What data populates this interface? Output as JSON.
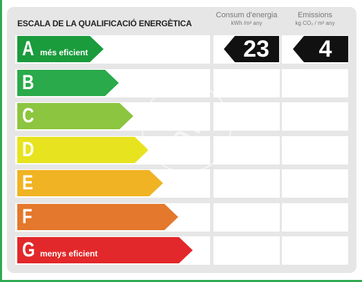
{
  "title": "ESCALA DE LA QUALIFICACIÓ ENERGÈTICA",
  "columns": {
    "energy": {
      "label": "Consum d'energia",
      "unit": "kWh /m² any",
      "value": "23"
    },
    "emissions": {
      "label": "Emissions",
      "unit": "kg CO₂ / m² any",
      "value": "4"
    }
  },
  "ratings": [
    {
      "letter": "A",
      "caption": "més eficient",
      "color": "#1a9b3c"
    },
    {
      "letter": "B",
      "caption": "",
      "color": "#2aaa4a"
    },
    {
      "letter": "C",
      "caption": "",
      "color": "#8cc53f"
    },
    {
      "letter": "D",
      "caption": "",
      "color": "#e8e31f"
    },
    {
      "letter": "E",
      "caption": "",
      "color": "#f0b323"
    },
    {
      "letter": "F",
      "caption": "",
      "color": "#e4782c"
    },
    {
      "letter": "G",
      "caption": "menys eficient",
      "color": "#e2282a"
    }
  ],
  "current_rating_index": 0,
  "watermark": "aP"
}
